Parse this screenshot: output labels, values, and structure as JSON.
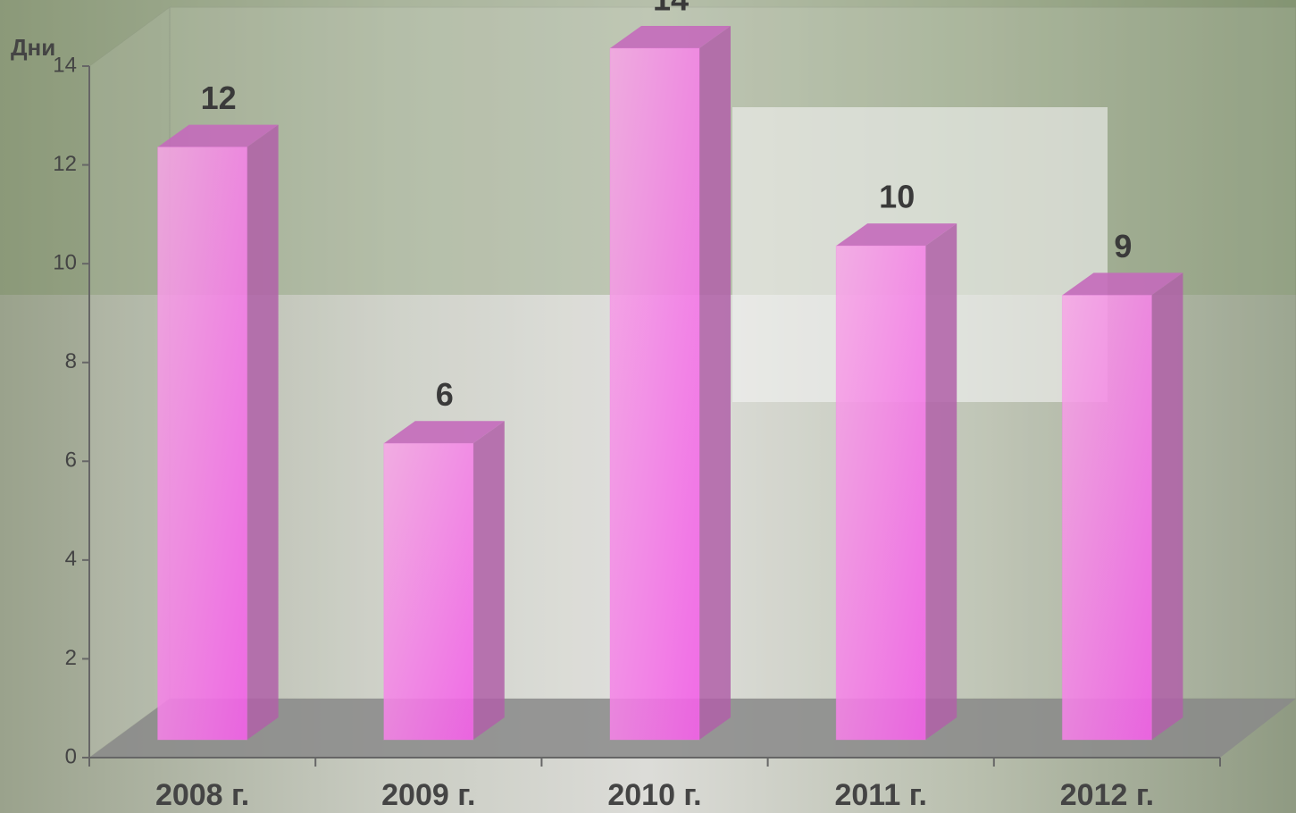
{
  "chart_data": {
    "type": "bar3d",
    "y_label": "Дни",
    "categories": [
      "2008 г.",
      "2009 г.",
      "2010 г.",
      "2011 г.",
      "2012 г."
    ],
    "values": [
      12,
      6,
      14,
      10,
      9
    ],
    "color": "#f47ae8",
    "ylim": [
      0,
      14
    ],
    "yticks": [
      0,
      2,
      4,
      6,
      8,
      10,
      12,
      14
    ]
  }
}
